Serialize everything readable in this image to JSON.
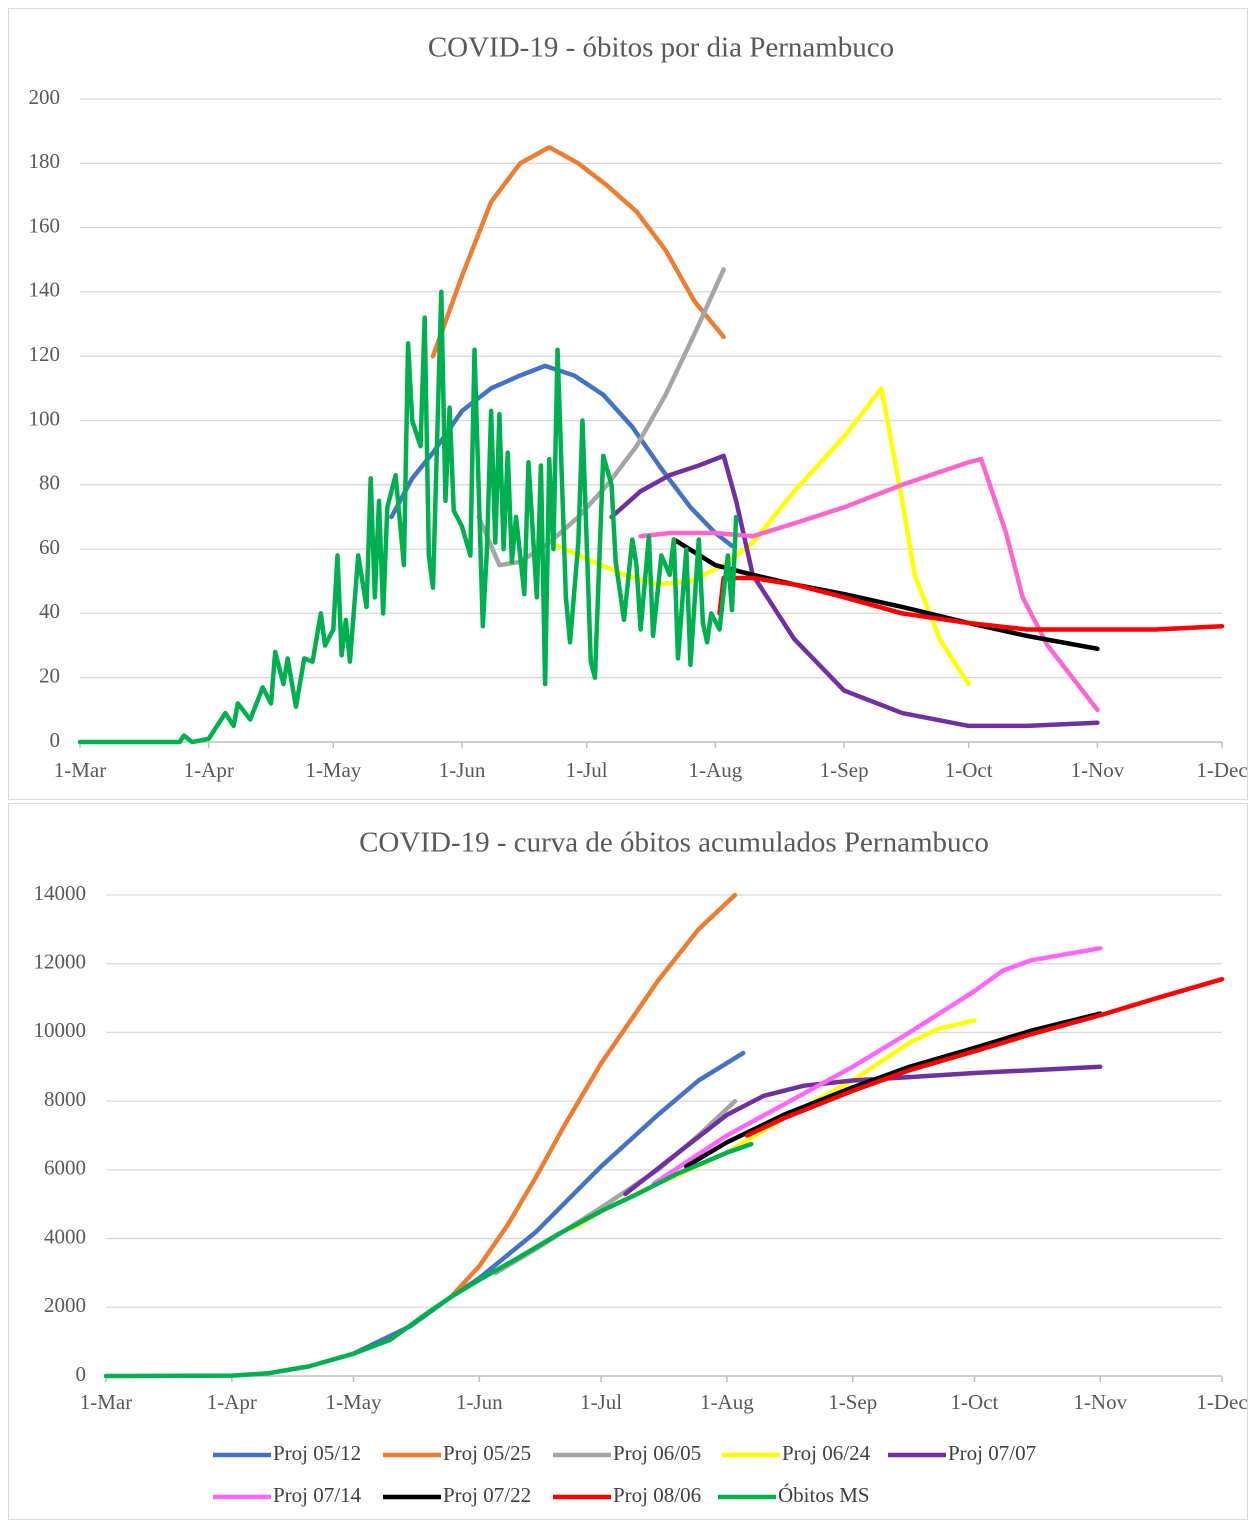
{
  "chart_data": [
    {
      "type": "line",
      "title": "COVID-19 - óbitos por dia Pernambuco",
      "xlim": [
        "1-Mar",
        "1-Dec"
      ],
      "xticks": [
        "1-Mar",
        "1-Apr",
        "1-May",
        "1-Jun",
        "1-Jul",
        "1-Aug",
        "1-Sep",
        "1-Oct",
        "1-Nov",
        "1-Dec"
      ],
      "ylim": [
        0,
        200
      ],
      "yticks": [
        0,
        20,
        40,
        60,
        80,
        100,
        120,
        140,
        160,
        180,
        200
      ],
      "grid": true,
      "series": [
        {
          "color": "#4472c4",
          "x": [
            "15-May",
            "20-May",
            "25-May",
            "1-Jun",
            "8-Jun",
            "15-Jun",
            "21-Jun",
            "28-Jun",
            "5-Jul",
            "12-Jul",
            "19-Jul",
            "26-Jul",
            "1-Aug",
            "5-Aug"
          ],
          "values": [
            70,
            82,
            90,
            103,
            110,
            114,
            117,
            114,
            108,
            98,
            85,
            73,
            65,
            61
          ]
        },
        {
          "color": "#ed7d31",
          "x": [
            "25-May",
            "1-Jun",
            "8-Jun",
            "15-Jun",
            "22-Jun",
            "29-Jun",
            "6-Jul",
            "13-Jul",
            "20-Jul",
            "27-Jul",
            "3-Aug"
          ],
          "values": [
            120,
            145,
            168,
            180,
            185,
            180,
            173,
            165,
            153,
            137,
            126
          ]
        },
        {
          "color": "#a5a5a5",
          "x": [
            "5-Jun",
            "10-Jun",
            "15-Jun",
            "22-Jun",
            "29-Jun",
            "6-Jul",
            "13-Jul",
            "20-Jul",
            "27-Jul",
            "3-Aug"
          ],
          "values": [
            70,
            55,
            56,
            62,
            70,
            80,
            92,
            108,
            127,
            147
          ]
        },
        {
          "color": "#ffff00",
          "x": [
            "24-Jun",
            "1-Jul",
            "10-Jul",
            "18-Jul",
            "26-Jul",
            "3-Aug",
            "10-Aug",
            "20-Aug",
            "1-Sep",
            "10-Sep",
            "15-Sep",
            "18-Sep",
            "24-Sep",
            "1-Oct"
          ],
          "values": [
            61,
            57,
            52,
            49,
            50,
            55,
            62,
            78,
            95,
            110,
            75,
            52,
            32,
            18
          ]
        },
        {
          "color": "#7030a0",
          "x": [
            "7-Jul",
            "14-Jul",
            "21-Jul",
            "28-Jul",
            "3-Aug",
            "6-Aug",
            "10-Aug",
            "20-Aug",
            "1-Sep",
            "15-Sep",
            "1-Oct",
            "15-Oct",
            "1-Nov"
          ],
          "values": [
            70,
            78,
            83,
            86,
            89,
            75,
            52,
            32,
            16,
            9,
            5,
            5,
            6
          ]
        },
        {
          "color": "#ff66cc",
          "x": [
            "14-Jul",
            "21-Jul",
            "1-Aug",
            "10-Aug",
            "20-Aug",
            "1-Sep",
            "15-Sep",
            "1-Oct",
            "4-Oct",
            "10-Oct",
            "14-Oct",
            "20-Oct",
            "1-Nov"
          ],
          "values": [
            64,
            65,
            65,
            64,
            68,
            73,
            80,
            87,
            88,
            65,
            45,
            30,
            10
          ]
        },
        {
          "color": "#000000",
          "x": [
            "22-Jul",
            "1-Aug",
            "10-Aug",
            "20-Aug",
            "1-Sep",
            "15-Sep",
            "1-Oct",
            "15-Oct",
            "1-Nov"
          ],
          "values": [
            63,
            55,
            52,
            49,
            46,
            42,
            37,
            33,
            29
          ]
        },
        {
          "color": "#ff0000",
          "x": [
            "2-Aug",
            "3-Aug",
            "10-Aug",
            "20-Aug",
            "1-Sep",
            "15-Sep",
            "1-Oct",
            "15-Oct",
            "1-Nov",
            "15-Nov",
            "1-Dec"
          ],
          "values": [
            40,
            51,
            51,
            49,
            45,
            40,
            37,
            35,
            35,
            35,
            36
          ]
        },
        {
          "color": "#00b050",
          "x": [
            "1-Mar",
            "25-Mar",
            "26-Mar",
            "28-Mar",
            "1-Apr",
            "5-Apr",
            "7-Apr",
            "8-Apr",
            "11-Apr",
            "14-Apr",
            "16-Apr",
            "17-Apr",
            "19-Apr",
            "20-Apr",
            "22-Apr",
            "24-Apr",
            "26-Apr",
            "28-Apr",
            "29-Apr",
            "1-May",
            "2-May",
            "3-May",
            "4-May",
            "5-May",
            "7-May",
            "9-May",
            "10-May",
            "11-May",
            "12-May",
            "13-May",
            "14-May",
            "16-May",
            "18-May",
            "19-May",
            "20-May",
            "22-May",
            "23-May",
            "24-May",
            "25-May",
            "27-May",
            "28-May",
            "29-May",
            "30-May",
            "1-Jun",
            "3-Jun",
            "4-Jun",
            "6-Jun",
            "7-Jun",
            "8-Jun",
            "9-Jun",
            "10-Jun",
            "11-Jun",
            "12-Jun",
            "13-Jun",
            "14-Jun",
            "16-Jun",
            "17-Jun",
            "19-Jun",
            "20-Jun",
            "21-Jun",
            "22-Jun",
            "23-Jun",
            "24-Jun",
            "26-Jun",
            "27-Jun",
            "29-Jun",
            "30-Jun",
            "2-Jul",
            "3-Jul",
            "5-Jul",
            "7-Jul",
            "8-Jul",
            "10-Jul",
            "12-Jul",
            "13-Jul",
            "14-Jul",
            "16-Jul",
            "17-Jul",
            "19-Jul",
            "21-Jul",
            "22-Jul",
            "23-Jul",
            "25-Jul",
            "26-Jul",
            "28-Jul",
            "29-Jul",
            "30-Jul",
            "31-Jul",
            "2-Aug",
            "4-Aug",
            "5-Aug",
            "6-Aug"
          ],
          "values": [
            0,
            0,
            2,
            0,
            1,
            9,
            5,
            12,
            7,
            17,
            12,
            28,
            18,
            26,
            11,
            26,
            25,
            40,
            30,
            35,
            58,
            27,
            38,
            25,
            58,
            42,
            82,
            45,
            75,
            40,
            73,
            83,
            55,
            124,
            100,
            92,
            132,
            58,
            48,
            140,
            75,
            104,
            72,
            67,
            58,
            122,
            36,
            60,
            103,
            62,
            102,
            60,
            90,
            56,
            70,
            46,
            87,
            45,
            86,
            18,
            88,
            60,
            122,
            45,
            31,
            62,
            100,
            25,
            20,
            89,
            80,
            56,
            38,
            63,
            55,
            35,
            64,
            33,
            58,
            52,
            63,
            26,
            60,
            24,
            63,
            37,
            31,
            40,
            35,
            58,
            41,
            70
          ]
        }
      ]
    },
    {
      "type": "line",
      "title": "COVID-19 - curva de óbitos acumulados Pernambuco",
      "xlim": [
        "1-Mar",
        "1-Dec"
      ],
      "xticks": [
        "1-Mar",
        "1-Apr",
        "1-May",
        "1-Jun",
        "1-Jul",
        "1-Aug",
        "1-Sep",
        "1-Oct",
        "1-Nov",
        "1-Dec"
      ],
      "ylim": [
        0,
        14000
      ],
      "yticks": [
        0,
        2000,
        4000,
        6000,
        8000,
        10000,
        12000,
        14000
      ],
      "grid": true,
      "legend": "bottom",
      "series": [
        {
          "name": "Proj 05/12",
          "color": "#4472c4",
          "x": [
            "1-May",
            "15-May",
            "25-May",
            "1-Jun",
            "15-Jun",
            "1-Jul",
            "15-Jul",
            "25-Jul",
            "5-Aug"
          ],
          "values": [
            650,
            1450,
            2300,
            2850,
            4200,
            6100,
            7600,
            8600,
            9400
          ]
        },
        {
          "name": "Proj 05/25",
          "color": "#ed7d31",
          "x": [
            "25-May",
            "1-Jun",
            "8-Jun",
            "15-Jun",
            "22-Jun",
            "1-Jul",
            "15-Jul",
            "25-Jul",
            "3-Aug"
          ],
          "values": [
            2300,
            3200,
            4400,
            5800,
            7300,
            9100,
            11500,
            13000,
            14000
          ]
        },
        {
          "name": "Proj 06/05",
          "color": "#a5a5a5",
          "x": [
            "5-Jun",
            "15-Jun",
            "1-Jul",
            "15-Jul",
            "25-Jul",
            "3-Aug"
          ],
          "values": [
            3000,
            3700,
            4900,
            6000,
            7000,
            8000
          ]
        },
        {
          "name": "Proj 06/24",
          "color": "#ffff00",
          "x": [
            "24-Jun",
            "1-Jul",
            "15-Jul",
            "1-Aug",
            "15-Aug",
            "1-Sep",
            "15-Sep",
            "22-Sep",
            "1-Oct"
          ],
          "values": [
            4300,
            4800,
            5600,
            6500,
            7500,
            8600,
            9700,
            10100,
            10350
          ]
        },
        {
          "name": "Proj 07/07",
          "color": "#7030a0",
          "x": [
            "7-Jul",
            "20-Jul",
            "1-Aug",
            "10-Aug",
            "20-Aug",
            "1-Sep",
            "15-Sep",
            "1-Oct",
            "15-Oct",
            "1-Nov"
          ],
          "values": [
            5300,
            6500,
            7600,
            8150,
            8450,
            8600,
            8700,
            8820,
            8900,
            9000
          ]
        },
        {
          "name": "Proj 07/14",
          "color": "#ff66ff",
          "x": [
            "14-Jul",
            "1-Aug",
            "15-Aug",
            "1-Sep",
            "15-Sep",
            "1-Oct",
            "8-Oct",
            "15-Oct",
            "1-Nov"
          ],
          "values": [
            5600,
            7000,
            7900,
            9000,
            10000,
            11200,
            11800,
            12100,
            12450
          ]
        },
        {
          "name": "Proj 07/22",
          "color": "#000000",
          "x": [
            "22-Jul",
            "1-Aug",
            "15-Aug",
            "1-Sep",
            "15-Sep",
            "1-Oct",
            "15-Oct",
            "1-Nov"
          ],
          "values": [
            6100,
            6800,
            7600,
            8400,
            9000,
            9550,
            10050,
            10550
          ]
        },
        {
          "name": "Proj 08/06",
          "color": "#ff0000",
          "x": [
            "6-Aug",
            "15-Aug",
            "1-Sep",
            "15-Sep",
            "1-Oct",
            "15-Oct",
            "1-Nov",
            "15-Nov",
            "1-Dec"
          ],
          "values": [
            7000,
            7500,
            8300,
            8900,
            9450,
            9950,
            10500,
            11000,
            11550
          ]
        },
        {
          "name": "Óbitos MS",
          "color": "#00b050",
          "x": [
            "1-Mar",
            "1-Apr",
            "10-Apr",
            "20-Apr",
            "1-May",
            "10-May",
            "20-May",
            "25-May",
            "1-Jun",
            "10-Jun",
            "20-Jun",
            "1-Jul",
            "10-Jul",
            "20-Jul",
            "1-Aug",
            "7-Aug"
          ],
          "values": [
            0,
            10,
            80,
            280,
            650,
            1050,
            1900,
            2300,
            2800,
            3400,
            4100,
            4800,
            5300,
            5900,
            6500,
            6750
          ]
        }
      ]
    }
  ]
}
